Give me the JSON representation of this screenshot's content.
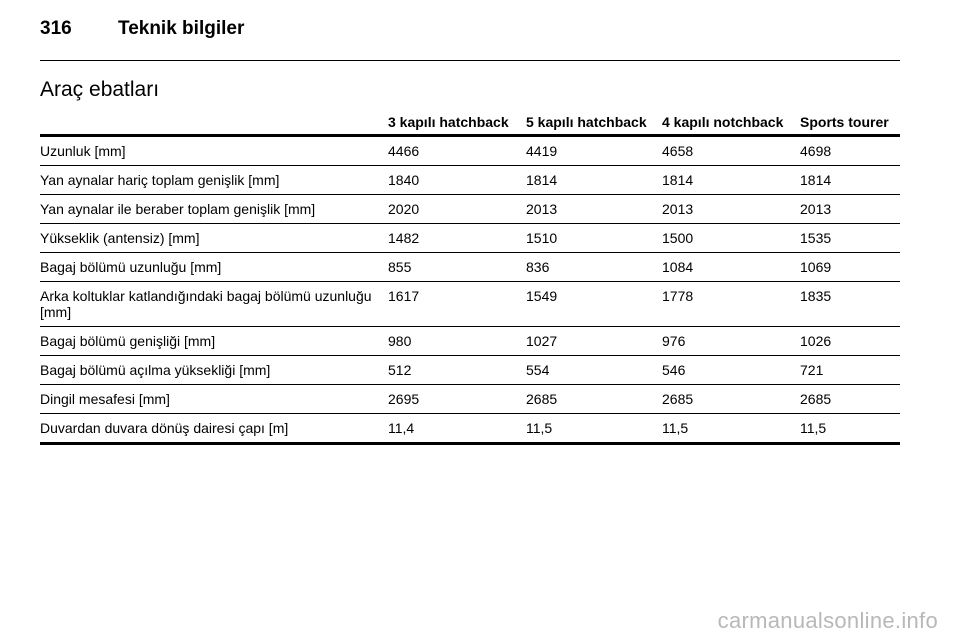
{
  "header": {
    "page_number": "316",
    "chapter": "Teknik bilgiler"
  },
  "section": {
    "title": "Araç ebatları"
  },
  "table": {
    "columns": [
      "",
      "3 kapılı hatchback",
      "5 kapılı hatchback",
      "4 kapılı notchback",
      "Sports tourer"
    ],
    "rows": [
      {
        "label": "Uzunluk [mm]",
        "values": [
          "4466",
          "4419",
          "4658",
          "4698"
        ]
      },
      {
        "label": "Yan aynalar hariç toplam genişlik [mm]",
        "values": [
          "1840",
          "1814",
          "1814",
          "1814"
        ]
      },
      {
        "label": "Yan aynalar ile beraber toplam genişlik [mm]",
        "values": [
          "2020",
          "2013",
          "2013",
          "2013"
        ]
      },
      {
        "label": "Yükseklik (antensiz) [mm]",
        "values": [
          "1482",
          "1510",
          "1500",
          "1535"
        ]
      },
      {
        "label": "Bagaj bölümü uzunluğu [mm]",
        "values": [
          "855",
          "836",
          "1084",
          "1069"
        ]
      },
      {
        "label": "Arka koltuklar katlandığındaki bagaj bölümü uzunluğu [mm]",
        "values": [
          "1617",
          "1549",
          "1778",
          "1835"
        ]
      },
      {
        "label": "Bagaj bölümü genişliği [mm]",
        "values": [
          "980",
          "1027",
          "976",
          "1026"
        ]
      },
      {
        "label": "Bagaj bölümü açılma yüksekliği [mm]",
        "values": [
          "512",
          "554",
          "546",
          "721"
        ]
      },
      {
        "label": "Dingil mesafesi [mm]",
        "values": [
          "2695",
          "2685",
          "2685",
          "2685"
        ]
      },
      {
        "label": "Duvardan duvara dönüş dairesi çapı [m]",
        "values": [
          "11,4",
          "11,5",
          "11,5",
          "11,5"
        ]
      }
    ]
  },
  "watermark": "carmanualsonline.info"
}
